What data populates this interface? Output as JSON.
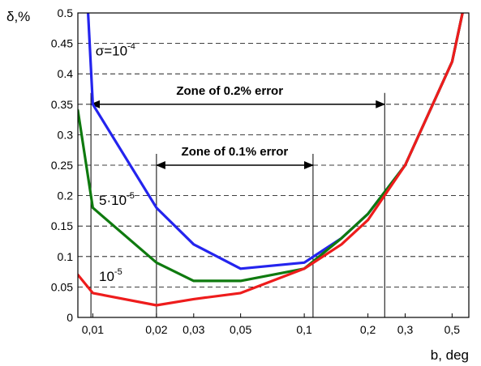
{
  "chart_data": {
    "type": "line",
    "title": "",
    "xlabel": "b, deg",
    "ylabel": "δ,%",
    "xscale": "log",
    "xlim": [
      0.0085,
      0.6
    ],
    "ylim": [
      0,
      0.5
    ],
    "grid": "horizontal dashed",
    "x_ticks": [
      {
        "value": 0.01,
        "label": "0,01"
      },
      {
        "value": 0.02,
        "label": "0,02"
      },
      {
        "value": 0.03,
        "label": "0,03"
      },
      {
        "value": 0.05,
        "label": "0,05"
      },
      {
        "value": 0.1,
        "label": "0,1"
      },
      {
        "value": 0.2,
        "label": "0,2"
      },
      {
        "value": 0.3,
        "label": "0,3"
      },
      {
        "value": 0.5,
        "label": "0,5"
      }
    ],
    "y_ticks": [
      {
        "value": 0,
        "label": "0"
      },
      {
        "value": 0.05,
        "label": "0.05"
      },
      {
        "value": 0.1,
        "label": "0.1"
      },
      {
        "value": 0.15,
        "label": "0.15"
      },
      {
        "value": 0.2,
        "label": "0.2"
      },
      {
        "value": 0.25,
        "label": "0.25"
      },
      {
        "value": 0.3,
        "label": "0.3"
      },
      {
        "value": 0.35,
        "label": "0.35"
      },
      {
        "value": 0.4,
        "label": "0.4"
      },
      {
        "value": 0.45,
        "label": "0.45"
      },
      {
        "value": 0.5,
        "label": "0.5"
      }
    ],
    "series": [
      {
        "name": "σ=10-4",
        "label_parts": [
          "σ=10",
          "-4"
        ],
        "color": "#2424ee",
        "x": [
          0.0095,
          0.01,
          0.02,
          0.03,
          0.05,
          0.1,
          0.15,
          0.2,
          0.3,
          0.5,
          0.56
        ],
        "y": [
          0.5,
          0.35,
          0.18,
          0.12,
          0.08,
          0.09,
          0.13,
          0.17,
          0.25,
          0.42,
          0.5
        ]
      },
      {
        "name": "5·10-5",
        "label_parts": [
          "5·10",
          "-5"
        ],
        "color": "#0f7a0f",
        "x": [
          0.0085,
          0.01,
          0.02,
          0.03,
          0.05,
          0.1,
          0.15,
          0.2,
          0.3,
          0.5,
          0.56
        ],
        "y": [
          0.34,
          0.18,
          0.09,
          0.06,
          0.06,
          0.08,
          0.13,
          0.17,
          0.25,
          0.42,
          0.5
        ]
      },
      {
        "name": "10-5",
        "label_parts": [
          "10",
          "-5"
        ],
        "color": "#ee1c1c",
        "x": [
          0.0085,
          0.01,
          0.02,
          0.03,
          0.05,
          0.1,
          0.15,
          0.2,
          0.3,
          0.5,
          0.56
        ],
        "y": [
          0.07,
          0.04,
          0.02,
          0.03,
          0.04,
          0.08,
          0.12,
          0.16,
          0.25,
          0.42,
          0.5
        ]
      }
    ],
    "annotations": [
      {
        "text": "Zone of 0.2% error",
        "x_from": 0.0098,
        "x_to": 0.24,
        "y": 0.35
      },
      {
        "text": "Zone of 0.1% error",
        "x_from": 0.02,
        "x_to": 0.11,
        "y": 0.25
      }
    ]
  }
}
